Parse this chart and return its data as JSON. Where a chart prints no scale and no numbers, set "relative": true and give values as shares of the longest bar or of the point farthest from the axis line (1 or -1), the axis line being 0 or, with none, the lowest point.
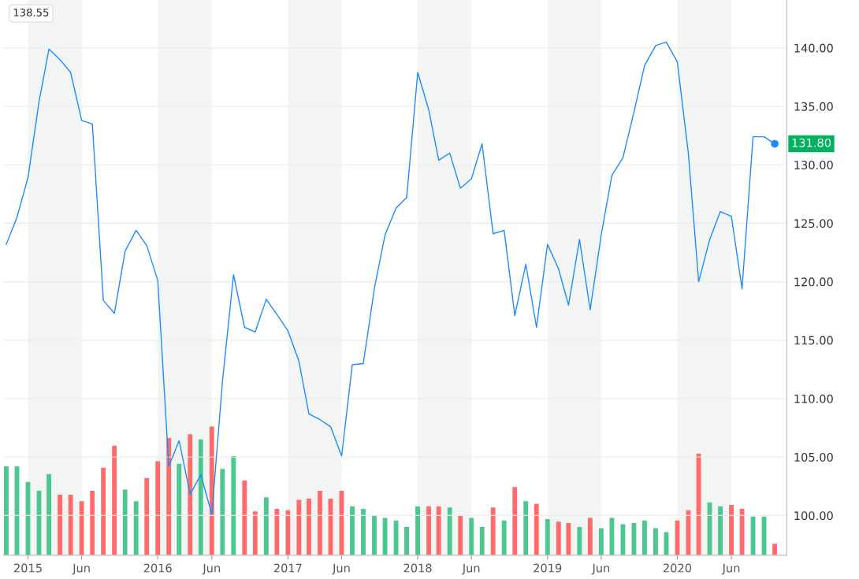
{
  "chart_data": [
    {
      "type": "line",
      "x": [
        "2014-11",
        "2014-12",
        "2015-01",
        "2015-02",
        "2015-03",
        "2015-04",
        "2015-05",
        "2015-06",
        "2015-07",
        "2015-08",
        "2015-09",
        "2015-10",
        "2015-11",
        "2015-12",
        "2016-01",
        "2016-02",
        "2016-03",
        "2016-04",
        "2016-05",
        "2016-06",
        "2016-07",
        "2016-08",
        "2016-09",
        "2016-10",
        "2016-11",
        "2016-12",
        "2017-01",
        "2017-02",
        "2017-03",
        "2017-04",
        "2017-05",
        "2017-06",
        "2017-07",
        "2017-08",
        "2017-09",
        "2017-10",
        "2017-11",
        "2017-12",
        "2018-01",
        "2018-02",
        "2018-03",
        "2018-04",
        "2018-05",
        "2018-06",
        "2018-07",
        "2018-08",
        "2018-09",
        "2018-10",
        "2018-11",
        "2018-12",
        "2019-01",
        "2019-02",
        "2019-03",
        "2019-04",
        "2019-05",
        "2019-06",
        "2019-07",
        "2019-08",
        "2019-09",
        "2019-10",
        "2019-11",
        "2019-12",
        "2020-01",
        "2020-02",
        "2020-03",
        "2020-04",
        "2020-05",
        "2020-06",
        "2020-07",
        "2020-08",
        "2020-09",
        "2020-10"
      ],
      "series": [
        {
          "color": "#1a8cff",
          "values": [
            123.2,
            125.5,
            128.9,
            135.4,
            139.9,
            139.0,
            137.9,
            133.8,
            133.5,
            118.4,
            117.3,
            122.6,
            124.4,
            123.1,
            120.1,
            104.2,
            106.4,
            101.8,
            103.5,
            100.1,
            111.5,
            120.6,
            116.1,
            115.7,
            118.5,
            117.2,
            115.8,
            113.2,
            108.7,
            108.2,
            107.6,
            105.1,
            112.9,
            113.0,
            119.4,
            124.0,
            126.3,
            127.2,
            137.9,
            134.7,
            130.4,
            131.0,
            128.0,
            128.8,
            131.8,
            124.1,
            124.4,
            117.1,
            121.5,
            116.1,
            123.2,
            121.1,
            118.0,
            123.6,
            117.6,
            124.0,
            129.1,
            130.6,
            134.5,
            138.5,
            140.2,
            140.5,
            138.8,
            131.0,
            120.0,
            123.6,
            126.0,
            125.6,
            119.4,
            132.4,
            132.4,
            131.8
          ]
        }
      ],
      "xlim": [
        "2014-10-24",
        "2020-11-04"
      ],
      "xticks": [
        {
          "value": "2015-01-01",
          "label": "2015"
        },
        {
          "value": "2015-06-01",
          "label": "Jun"
        },
        {
          "value": "2016-01-01",
          "label": "2016"
        },
        {
          "value": "2016-06-01",
          "label": "Jun"
        },
        {
          "value": "2017-01-01",
          "label": "2017"
        },
        {
          "value": "2017-06-01",
          "label": "Jun"
        },
        {
          "value": "2018-01-01",
          "label": "2018"
        },
        {
          "value": "2018-06-01",
          "label": "Jun"
        },
        {
          "value": "2019-01-01",
          "label": "2019"
        },
        {
          "value": "2019-06-01",
          "label": "Jun"
        },
        {
          "value": "2020-01-01",
          "label": "2020"
        },
        {
          "value": "2020-06-01",
          "label": "Jun"
        }
      ],
      "ylim": [
        96.6,
        144.1
      ],
      "yticks": [
        {
          "value": 100,
          "label": "100.00"
        },
        {
          "value": 105,
          "label": "105.00"
        },
        {
          "value": 110,
          "label": "110.00"
        },
        {
          "value": 115,
          "label": "115.00"
        },
        {
          "value": 120,
          "label": "120.00"
        },
        {
          "value": 125,
          "label": "125.00"
        },
        {
          "value": 130,
          "label": "130.00"
        },
        {
          "value": 135,
          "label": "135.00"
        },
        {
          "value": 140,
          "label": "140.00"
        }
      ],
      "grid": "y",
      "bands": [
        {
          "axis": "x",
          "from": "2015-01-01",
          "to": "2015-06-01",
          "color": "#f3f5f5"
        },
        {
          "axis": "x",
          "from": "2016-01-01",
          "to": "2016-06-01",
          "color": "#f3f5f5"
        },
        {
          "axis": "x",
          "from": "2017-01-01",
          "to": "2017-06-01",
          "color": "#f3f5f5"
        },
        {
          "axis": "x",
          "from": "2018-01-01",
          "to": "2018-06-01",
          "color": "#f3f5f5"
        },
        {
          "axis": "x",
          "from": "2019-01-01",
          "to": "2019-06-01",
          "color": "#f3f5f5"
        },
        {
          "axis": "x",
          "from": "2020-01-01",
          "to": "2020-06-01",
          "color": "#f3f5f5"
        }
      ],
      "annotations": [
        "138.55",
        {
          "text": "131.80",
          "x": "2020-10",
          "y": 131.8
        }
      ]
    },
    {
      "type": "bar",
      "relative": true,
      "x": [
        "2014-11",
        "2014-12",
        "2015-01",
        "2015-02",
        "2015-03",
        "2015-04",
        "2015-05",
        "2015-06",
        "2015-07",
        "2015-08",
        "2015-09",
        "2015-10",
        "2015-11",
        "2015-12",
        "2016-01",
        "2016-02",
        "2016-03",
        "2016-04",
        "2016-05",
        "2016-06",
        "2016-07",
        "2016-08",
        "2016-09",
        "2016-10",
        "2016-11",
        "2016-12",
        "2017-01",
        "2017-02",
        "2017-03",
        "2017-04",
        "2017-05",
        "2017-06",
        "2017-07",
        "2017-08",
        "2017-09",
        "2017-10",
        "2017-11",
        "2017-12",
        "2018-01",
        "2018-02",
        "2018-03",
        "2018-04",
        "2018-05",
        "2018-06",
        "2018-07",
        "2018-08",
        "2018-09",
        "2018-10",
        "2018-11",
        "2018-12",
        "2019-01",
        "2019-02",
        "2019-03",
        "2019-04",
        "2019-05",
        "2019-06",
        "2019-07",
        "2019-08",
        "2019-09",
        "2019-10",
        "2019-11",
        "2019-12",
        "2020-01",
        "2020-02",
        "2020-03",
        "2020-04",
        "2020-05",
        "2020-06",
        "2020-07",
        "2020-08",
        "2020-09",
        "2020-10"
      ],
      "xlim": [
        "2014-10-24",
        "2020-11-04"
      ],
      "values": [
        0.69,
        0.69,
        0.57,
        0.5,
        0.63,
        0.47,
        0.47,
        0.42,
        0.5,
        0.68,
        0.85,
        0.51,
        0.42,
        0.6,
        0.73,
        0.91,
        0.71,
        0.94,
        0.9,
        1,
        0.67,
        0.77,
        0.58,
        0.34,
        0.45,
        0.36,
        0.35,
        0.43,
        0.44,
        0.5,
        0.44,
        0.5,
        0.38,
        0.36,
        0.31,
        0.29,
        0.27,
        0.22,
        0.38,
        0.38,
        0.38,
        0.37,
        0.31,
        0.29,
        0.22,
        0.37,
        0.27,
        0.53,
        0.42,
        0.4,
        0.28,
        0.26,
        0.25,
        0.22,
        0.29,
        0.21,
        0.29,
        0.24,
        0.25,
        0.27,
        0.21,
        0.18,
        0.27,
        0.35,
        0.79,
        0.41,
        0.38,
        0.39,
        0.36,
        0.3,
        0.3,
        0.09
      ],
      "colors": [
        "#4cc790",
        "#4cc790",
        "#4cc790",
        "#4cc790",
        "#4cc790",
        "#ff6b6b",
        "#ff6b6b",
        "#ff6b6b",
        "#ff6b6b",
        "#ff6b6b",
        "#ff6b6b",
        "#4cc790",
        "#4cc790",
        "#ff6b6b",
        "#ff6b6b",
        "#ff6b6b",
        "#4cc790",
        "#ff6b6b",
        "#4cc790",
        "#ff6b6b",
        "#4cc790",
        "#4cc790",
        "#ff6b6b",
        "#ff6b6b",
        "#4cc790",
        "#ff6b6b",
        "#ff6b6b",
        "#ff6b6b",
        "#ff6b6b",
        "#ff6b6b",
        "#ff6b6b",
        "#ff6b6b",
        "#4cc790",
        "#4cc790",
        "#4cc790",
        "#4cc790",
        "#4cc790",
        "#4cc790",
        "#4cc790",
        "#ff6b6b",
        "#ff6b6b",
        "#4cc790",
        "#ff6b6b",
        "#4cc790",
        "#4cc790",
        "#ff6b6b",
        "#4cc790",
        "#ff6b6b",
        "#4cc790",
        "#ff6b6b",
        "#4cc790",
        "#ff6b6b",
        "#ff6b6b",
        "#4cc790",
        "#ff6b6b",
        "#4cc790",
        "#4cc790",
        "#4cc790",
        "#4cc790",
        "#4cc790",
        "#4cc790",
        "#4cc790",
        "#ff6b6b",
        "#ff6b6b",
        "#ff6b6b",
        "#4cc790",
        "#4cc790",
        "#ff6b6b",
        "#ff6b6b",
        "#4cc790",
        "#4cc790",
        "#ff6b6b"
      ]
    }
  ]
}
